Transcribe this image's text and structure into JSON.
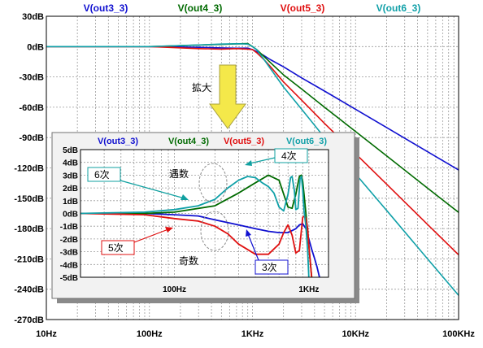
{
  "colors": {
    "out3": "#1010d0",
    "out4": "#006a00",
    "out5": "#e01010",
    "out6": "#10a0a8",
    "arrow": "#f0e040",
    "callout": "#10a0a0"
  },
  "chart_data": [
    {
      "type": "line",
      "x_scale": "log",
      "xlim": [
        10,
        100000
      ],
      "ylim": [
        -270,
        30
      ],
      "x_ticks": [
        "10Hz",
        "100Hz",
        "1KHz",
        "10KHz",
        "100KHz"
      ],
      "y_ticks": [
        "30dB",
        "0dB",
        "-30dB",
        "-60dB",
        "-90dB",
        "-120dB",
        "-150dB",
        "-180dB",
        "-210dB",
        "-240dB",
        "-270dB"
      ],
      "grid": true,
      "legend_position": "top",
      "series": [
        {
          "name": "V(out3_3)",
          "x": [
            10,
            100,
            300,
            500,
            700,
            900,
            1000,
            1100,
            1300,
            1500,
            2000,
            3000,
            5000,
            10000,
            20000,
            50000,
            100000
          ],
          "y": [
            0,
            0,
            -0.7,
            -1.3,
            -1.6,
            -1.5,
            -3,
            -5,
            -9,
            -13,
            -20,
            -31,
            -44,
            -62,
            -80,
            -104,
            -122
          ]
        },
        {
          "name": "V(out4_3)",
          "x": [
            10,
            100,
            150,
            300,
            500,
            700,
            900,
            1000,
            1100,
            1300,
            1500,
            2000,
            3000,
            5000,
            10000,
            20000,
            50000,
            100000
          ],
          "y": [
            0,
            0,
            0.5,
            1.5,
            2.2,
            2.7,
            3,
            0,
            -3,
            -10,
            -16,
            -28,
            -42,
            -60,
            -84,
            -108,
            -140,
            -164
          ]
        },
        {
          "name": "V(out5_3)",
          "x": [
            10,
            100,
            150,
            300,
            500,
            700,
            900,
            1000,
            1100,
            1300,
            1500,
            2000,
            3000,
            5000,
            10000,
            20000,
            50000,
            100000
          ],
          "y": [
            0,
            0,
            -0.7,
            -2,
            -2.5,
            -2,
            -2.5,
            -3,
            -6,
            -13,
            -20,
            -35,
            -53,
            -76,
            -106,
            -136,
            -176,
            -206
          ]
        },
        {
          "name": "V(out6_3)",
          "x": [
            10,
            100,
            150,
            300,
            500,
            700,
            900,
            1000,
            1100,
            1300,
            1500,
            2000,
            3000,
            5000,
            10000,
            20000,
            50000,
            100000
          ],
          "y": [
            0,
            0,
            0.6,
            1.6,
            2.5,
            2.8,
            2.5,
            0,
            -3,
            -13,
            -22,
            -40,
            -62,
            -90,
            -126,
            -162,
            -210,
            -246
          ]
        }
      ]
    },
    {
      "type": "line",
      "x_scale": "log",
      "xlim": [
        20,
        1400
      ],
      "ylim": [
        -5,
        5
      ],
      "x_ticks": [
        "100Hz",
        "1KHz"
      ],
      "y_ticks": [
        "5dB",
        "4dB",
        "3dB",
        "2dB",
        "1dB",
        "0dB",
        "-1dB",
        "-2dB",
        "-3dB",
        "-4dB",
        "-5dB"
      ],
      "grid": true,
      "legend_position": "top",
      "series": [
        {
          "name": "V(out3_3)",
          "x": [
            20,
            60,
            100,
            150,
            200,
            300,
            400,
            500,
            600,
            700,
            800,
            850,
            900,
            950,
            1000,
            1050,
            1100,
            1150,
            1200
          ],
          "y": [
            0,
            0,
            -0.1,
            -0.2,
            -0.5,
            -0.9,
            -1.2,
            -1.4,
            -1.5,
            -1.5,
            -1.2,
            -0.9,
            -0.8,
            -1.2,
            -2.0,
            -2.8,
            -3.5,
            -4.2,
            -5
          ]
        },
        {
          "name": "V(out4_3)",
          "x": [
            20,
            60,
            100,
            200,
            300,
            400,
            500,
            600,
            650,
            700,
            750,
            800,
            850,
            880,
            900,
            920,
            950,
            1000,
            1050
          ],
          "y": [
            0,
            0,
            0.1,
            0.6,
            1.6,
            2.4,
            3.0,
            2.6,
            1.5,
            0.5,
            0.4,
            1.5,
            2.9,
            3.0,
            2.5,
            1.5,
            0.0,
            -2.5,
            -5
          ]
        },
        {
          "name": "V(out5_3)",
          "x": [
            20,
            60,
            100,
            150,
            200,
            250,
            300,
            400,
            500,
            600,
            650,
            700,
            750,
            800,
            850,
            880,
            900,
            930,
            950,
            980,
            1000,
            1050
          ],
          "y": [
            0,
            -0.1,
            -0.4,
            -0.6,
            -1.0,
            -1.6,
            -2.4,
            -3.2,
            -3.2,
            -2.4,
            -1.5,
            -0.9,
            -1.7,
            -3.1,
            -2.9,
            -1.3,
            -0.3,
            -0.2,
            -0.4,
            -1.2,
            -2.5,
            -5
          ]
        },
        {
          "name": "V(out6_3)",
          "x": [
            20,
            60,
            100,
            150,
            200,
            250,
            300,
            350,
            400,
            450,
            500,
            550,
            600,
            650,
            700,
            730,
            750,
            780,
            800,
            830,
            860,
            880,
            900,
            920,
            950,
            980,
            1000
          ],
          "y": [
            0,
            0.1,
            0.3,
            0.6,
            1.1,
            2.0,
            2.6,
            2.9,
            2.8,
            2.4,
            2.1,
            1.6,
            0.5,
            0.2,
            1.5,
            2.8,
            2.9,
            1.8,
            0.3,
            0.4,
            2.7,
            2.9,
            1.8,
            0.2,
            -1.0,
            -3.0,
            -5
          ]
        }
      ]
    }
  ],
  "annotations": {
    "zoom_label": "拡大",
    "sixth_order": "6次",
    "odd_number": "奇数",
    "fourth_order": "4次",
    "fifth_order": "5次",
    "third_order": "3次",
    "even_number": "遇数"
  }
}
